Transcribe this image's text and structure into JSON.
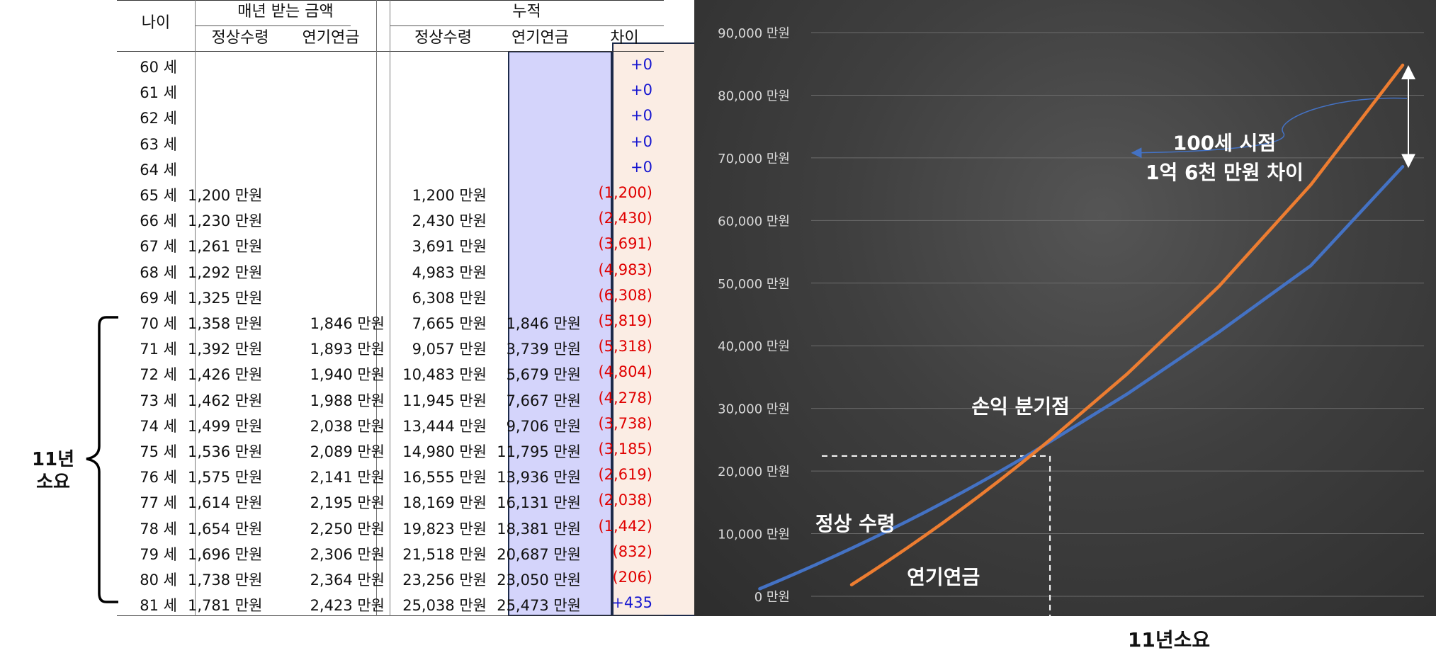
{
  "table": {
    "headers": {
      "age": "나이",
      "annual": "매년 받는 금액",
      "cumulative": "누적",
      "normal": "정상수령",
      "deferred": "연기연금",
      "diff": "차이"
    },
    "rows": [
      {
        "age": "60 세",
        "normal": "",
        "deferred": "",
        "cum_normal": "",
        "cum_deferred": "",
        "diff": "+0",
        "diff_sign": "pos"
      },
      {
        "age": "61 세",
        "normal": "",
        "deferred": "",
        "cum_normal": "",
        "cum_deferred": "",
        "diff": "+0",
        "diff_sign": "pos"
      },
      {
        "age": "62 세",
        "normal": "",
        "deferred": "",
        "cum_normal": "",
        "cum_deferred": "",
        "diff": "+0",
        "diff_sign": "pos"
      },
      {
        "age": "63 세",
        "normal": "",
        "deferred": "",
        "cum_normal": "",
        "cum_deferred": "",
        "diff": "+0",
        "diff_sign": "pos"
      },
      {
        "age": "64 세",
        "normal": "",
        "deferred": "",
        "cum_normal": "",
        "cum_deferred": "",
        "diff": "+0",
        "diff_sign": "pos"
      },
      {
        "age": "65 세",
        "normal": "1,200 만원",
        "deferred": "",
        "cum_normal": "1,200 만원",
        "cum_deferred": "",
        "diff": "(1,200)",
        "diff_sign": "neg"
      },
      {
        "age": "66 세",
        "normal": "1,230 만원",
        "deferred": "",
        "cum_normal": "2,430 만원",
        "cum_deferred": "",
        "diff": "(2,430)",
        "diff_sign": "neg"
      },
      {
        "age": "67 세",
        "normal": "1,261 만원",
        "deferred": "",
        "cum_normal": "3,691 만원",
        "cum_deferred": "",
        "diff": "(3,691)",
        "diff_sign": "neg"
      },
      {
        "age": "68 세",
        "normal": "1,292 만원",
        "deferred": "",
        "cum_normal": "4,983 만원",
        "cum_deferred": "",
        "diff": "(4,983)",
        "diff_sign": "neg"
      },
      {
        "age": "69 세",
        "normal": "1,325 만원",
        "deferred": "",
        "cum_normal": "6,308 만원",
        "cum_deferred": "",
        "diff": "(6,308)",
        "diff_sign": "neg"
      },
      {
        "age": "70 세",
        "normal": "1,358 만원",
        "deferred": "1,846 만원",
        "cum_normal": "7,665 만원",
        "cum_deferred": "1,846 만원",
        "diff": "(5,819)",
        "diff_sign": "neg"
      },
      {
        "age": "71 세",
        "normal": "1,392 만원",
        "deferred": "1,893 만원",
        "cum_normal": "9,057 만원",
        "cum_deferred": "3,739 만원",
        "diff": "(5,318)",
        "diff_sign": "neg"
      },
      {
        "age": "72 세",
        "normal": "1,426 만원",
        "deferred": "1,940 만원",
        "cum_normal": "10,483 만원",
        "cum_deferred": "5,679 만원",
        "diff": "(4,804)",
        "diff_sign": "neg"
      },
      {
        "age": "73 세",
        "normal": "1,462 만원",
        "deferred": "1,988 만원",
        "cum_normal": "11,945 만원",
        "cum_deferred": "7,667 만원",
        "diff": "(4,278)",
        "diff_sign": "neg"
      },
      {
        "age": "74 세",
        "normal": "1,499 만원",
        "deferred": "2,038 만원",
        "cum_normal": "13,444 만원",
        "cum_deferred": "9,706 만원",
        "diff": "(3,738)",
        "diff_sign": "neg"
      },
      {
        "age": "75 세",
        "normal": "1,536 만원",
        "deferred": "2,089 만원",
        "cum_normal": "14,980 만원",
        "cum_deferred": "11,795 만원",
        "diff": "(3,185)",
        "diff_sign": "neg"
      },
      {
        "age": "76 세",
        "normal": "1,575 만원",
        "deferred": "2,141 만원",
        "cum_normal": "16,555 만원",
        "cum_deferred": "13,936 만원",
        "diff": "(2,619)",
        "diff_sign": "neg"
      },
      {
        "age": "77 세",
        "normal": "1,614 만원",
        "deferred": "2,195 만원",
        "cum_normal": "18,169 만원",
        "cum_deferred": "16,131 만원",
        "diff": "(2,038)",
        "diff_sign": "neg"
      },
      {
        "age": "78 세",
        "normal": "1,654 만원",
        "deferred": "2,250 만원",
        "cum_normal": "19,823 만원",
        "cum_deferred": "18,381 만원",
        "diff": "(1,442)",
        "diff_sign": "neg"
      },
      {
        "age": "79 세",
        "normal": "1,696 만원",
        "deferred": "2,306 만원",
        "cum_normal": "21,518 만원",
        "cum_deferred": "20,687 만원",
        "diff": "(832)",
        "diff_sign": "neg"
      },
      {
        "age": "80 세",
        "normal": "1,738 만원",
        "deferred": "2,364 만원",
        "cum_normal": "23,256 만원",
        "cum_deferred": "23,050 만원",
        "diff": "(206)",
        "diff_sign": "neg"
      },
      {
        "age": "81 세",
        "normal": "1,781 만원",
        "deferred": "2,423 만원",
        "cum_normal": "25,038 만원",
        "cum_deferred": "25,473 만원",
        "diff": "+435",
        "diff_sign": "pos"
      }
    ]
  },
  "brace_label": [
    "11년",
    "소요"
  ],
  "colors": {
    "normal_line": "#4472c4",
    "deferred_line": "#ed7d31",
    "neg": "#e00000",
    "pos": "#1616d0"
  },
  "chart_data": {
    "type": "line",
    "title": "",
    "xlabel": "11년소요",
    "ylabel": "",
    "ylim": [
      0,
      90000
    ],
    "y_ticks": [
      {
        "value": 0,
        "label": "0 만원"
      },
      {
        "value": 10000,
        "label": "10,000 만원"
      },
      {
        "value": 20000,
        "label": "20,000 만원"
      },
      {
        "value": 30000,
        "label": "30,000 만원"
      },
      {
        "value": 40000,
        "label": "40,000 만원"
      },
      {
        "value": 50000,
        "label": "50,000 만원"
      },
      {
        "value": 60000,
        "label": "60,000 만원"
      },
      {
        "value": 70000,
        "label": "70,000 만원"
      },
      {
        "value": 80000,
        "label": "80,000 만원"
      },
      {
        "value": 90000,
        "label": "90,000 만원"
      }
    ],
    "xlim": [
      65,
      100
    ],
    "grid": true,
    "series": [
      {
        "name": "정상 수령",
        "color": "#4472c4",
        "x": [
          65,
          66,
          67,
          68,
          69,
          70,
          71,
          72,
          73,
          74,
          75,
          76,
          77,
          78,
          79,
          80,
          81,
          85,
          90,
          95,
          100
        ],
        "y": [
          1200,
          2430,
          3691,
          4983,
          6308,
          7665,
          9057,
          10483,
          11945,
          13444,
          14980,
          16555,
          18169,
          19823,
          21518,
          23256,
          25038,
          32300,
          42200,
          52800,
          68600
        ]
      },
      {
        "name": "연기연금",
        "color": "#ed7d31",
        "x": [
          70,
          71,
          72,
          73,
          74,
          75,
          76,
          77,
          78,
          79,
          80,
          81,
          85,
          90,
          95,
          100
        ],
        "y": [
          1846,
          3739,
          5679,
          7667,
          9706,
          11795,
          13936,
          16131,
          18381,
          20687,
          23050,
          25473,
          35500,
          49500,
          65700,
          84800
        ]
      }
    ],
    "annotations": {
      "breakeven": "손익 분기점",
      "breakeven_point": {
        "x": 80.8,
        "y": 22400
      },
      "normal_label": "정상 수령",
      "deferred_label": "연기연금",
      "gap_line1": "100세 시점",
      "gap_line2": "1억 6천 만원 차이"
    }
  }
}
